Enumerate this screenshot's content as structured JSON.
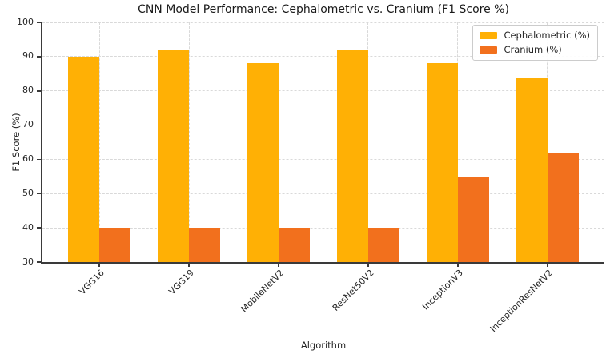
{
  "chart_data": {
    "type": "bar",
    "title": "CNN Model Performance: Cephalometric vs. Cranium (F1 Score %)",
    "xlabel": "Algorithm",
    "ylabel": "F1 Score (%)",
    "categories": [
      "VGG16",
      "VGG19",
      "MobileNetV2",
      "ResNet50V2",
      "InceptionV3",
      "InceptionResNetV2"
    ],
    "series": [
      {
        "name": "Cephalometric (%)",
        "color": "#FFB005",
        "values": [
          90,
          92,
          88,
          92,
          88,
          84
        ]
      },
      {
        "name": "Cranium (%)",
        "color": "#F2701D",
        "values": [
          40,
          40,
          40,
          40,
          55,
          62
        ]
      }
    ],
    "ylim": [
      30,
      100
    ],
    "yticks": [
      30,
      40,
      50,
      60,
      70,
      80,
      90,
      100
    ],
    "grid": true,
    "grid_style": "dashed",
    "legend_position": "upper right",
    "colors": {
      "background": "#ffffff",
      "grid": "#d9d9d9",
      "spine": "#3a3a3a",
      "text": "#262626"
    }
  }
}
